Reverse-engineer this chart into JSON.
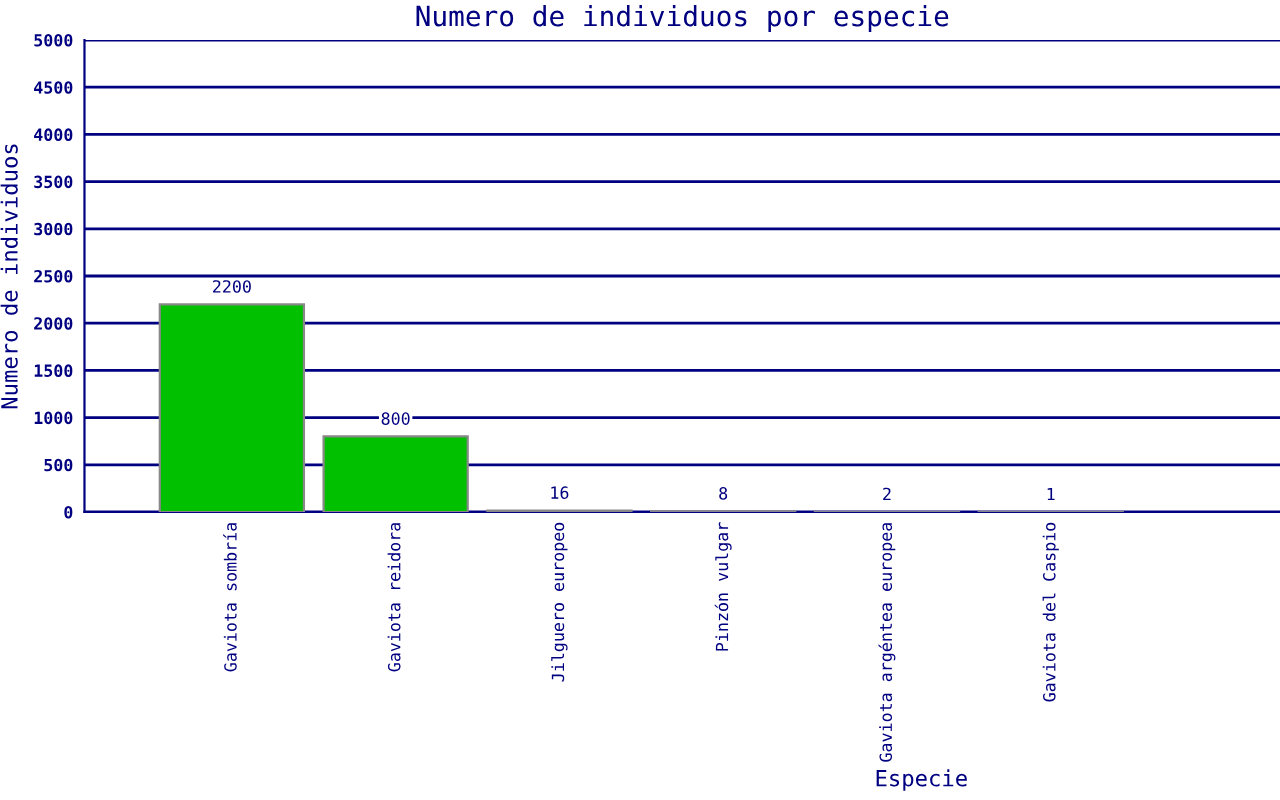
{
  "chart_data": {
    "type": "bar",
    "title": "Numero de individuos por especie",
    "xlabel": "Especie",
    "ylabel": "Numero de individuos",
    "categories": [
      "Gaviota sombría",
      "Gaviota reidora",
      "Jilguero europeo",
      "Pinzón vulgar",
      "Gaviota argéntea europea",
      "Gaviota del Caspio"
    ],
    "values": [
      2200,
      800,
      16,
      8,
      2,
      1
    ],
    "color": "#00c000",
    "ylim": [
      0,
      5000
    ],
    "yticks": [
      0,
      500,
      1000,
      1500,
      2000,
      2500,
      3000,
      3500,
      4000,
      4500,
      5000
    ],
    "grid": "y",
    "data_labels": true
  }
}
